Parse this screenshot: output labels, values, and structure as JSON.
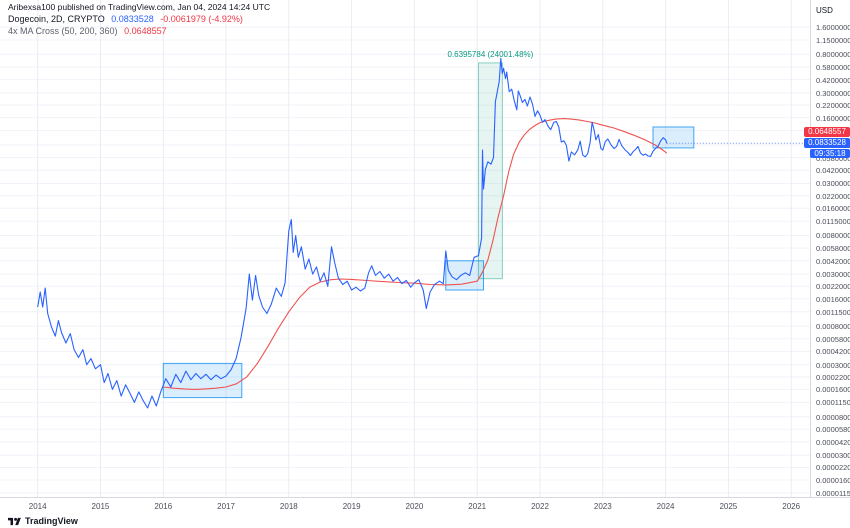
{
  "header": {
    "attribution": "Aribexsa100 published on TradingView.com, Jan 04, 2024 14:24 UTC",
    "symbol_line": {
      "title": "Dogecoin, 2D, CRYPTO",
      "price": "0.0833528",
      "change": "-0.0061979 (-4.92%)"
    },
    "indicator_line": {
      "title": "4x MA Cross (50, 200, 360)",
      "value": "0.0648557"
    }
  },
  "axis": {
    "unit_label": "USD",
    "y_ticks": [
      "1.6000000",
      "1.1500000",
      "0.8000000",
      "0.5800000",
      "0.4200000",
      "0.3000000",
      "0.2200000",
      "0.1600000",
      "0.1150000",
      "0.0800000",
      "0.0580000",
      "0.0420000",
      "0.0300000",
      "0.0220000",
      "0.0160000",
      "0.0115000",
      "0.0080000",
      "0.0058000",
      "0.0042000",
      "0.0030000",
      "0.0022000",
      "0.0016000",
      "0.0011500",
      "0.0008000",
      "0.0005800",
      "0.0004200",
      "0.0003000",
      "0.0002200",
      "0.0001600",
      "0.0001150",
      "0.0000800",
      "0.0000580",
      "0.0000420",
      "0.0000300",
      "0.0000220",
      "0.0000160",
      "0.0000115"
    ],
    "x_ticks": [
      "2014",
      "2015",
      "2016",
      "2017",
      "2018",
      "2019",
      "2020",
      "2021",
      "2022",
      "2023",
      "2024",
      "2025",
      "2026"
    ]
  },
  "badges": {
    "ma_value": "0.0648557",
    "price_value": "0.0833528",
    "countdown": "09:35:18"
  },
  "annotation": {
    "range_label": "0.6395784 (24001.48%)"
  },
  "footer": {
    "brand": "TradingView"
  },
  "colors": {
    "price_blue": "#2962ff",
    "change_red": "#f23645",
    "ma_red": "#ef5350",
    "band_green": "#089981"
  },
  "chart_data": {
    "type": "line",
    "title": "Dogecoin, 2D, CRYPTO",
    "ylabel": "USD",
    "yscale": "log",
    "grid": true,
    "x_unit": "decimal_year",
    "xlim": [
      2013.4,
      2026.3
    ],
    "ylim": [
      1.15e-05,
      1.6
    ],
    "series": [
      {
        "name": "4x MA Cross (50, 200, 360)",
        "color": "#ef5350",
        "points": [
          [
            2016.0,
            0.00017
          ],
          [
            2016.17,
            0.000165
          ],
          [
            2016.33,
            0.000162
          ],
          [
            2016.5,
            0.00016
          ],
          [
            2016.67,
            0.000162
          ],
          [
            2016.83,
            0.000165
          ],
          [
            2017.0,
            0.00017
          ],
          [
            2017.17,
            0.000185
          ],
          [
            2017.33,
            0.00022
          ],
          [
            2017.5,
            0.00031
          ],
          [
            2017.67,
            0.00048
          ],
          [
            2017.83,
            0.00075
          ],
          [
            2018.0,
            0.00115
          ],
          [
            2018.17,
            0.00165
          ],
          [
            2018.33,
            0.00215
          ],
          [
            2018.5,
            0.00245
          ],
          [
            2018.67,
            0.0026
          ],
          [
            2018.83,
            0.00265
          ],
          [
            2019.0,
            0.00262
          ],
          [
            2019.25,
            0.00255
          ],
          [
            2019.5,
            0.00248
          ],
          [
            2019.75,
            0.00242
          ],
          [
            2020.0,
            0.00238
          ],
          [
            2020.25,
            0.0023
          ],
          [
            2020.5,
            0.00228
          ],
          [
            2020.75,
            0.00232
          ],
          [
            2021.0,
            0.0025
          ],
          [
            2021.08,
            0.0031
          ],
          [
            2021.17,
            0.0043
          ],
          [
            2021.25,
            0.007
          ],
          [
            2021.33,
            0.0125
          ],
          [
            2021.42,
            0.022
          ],
          [
            2021.5,
            0.04
          ],
          [
            2021.58,
            0.063
          ],
          [
            2021.67,
            0.086
          ],
          [
            2021.75,
            0.103
          ],
          [
            2021.83,
            0.118
          ],
          [
            2021.92,
            0.131
          ],
          [
            2022.0,
            0.141
          ],
          [
            2022.13,
            0.149
          ],
          [
            2022.25,
            0.154
          ],
          [
            2022.38,
            0.156
          ],
          [
            2022.5,
            0.154
          ],
          [
            2022.63,
            0.15
          ],
          [
            2022.75,
            0.145
          ],
          [
            2022.88,
            0.139
          ],
          [
            2023.0,
            0.132
          ],
          [
            2023.17,
            0.123
          ],
          [
            2023.33,
            0.113
          ],
          [
            2023.5,
            0.102
          ],
          [
            2023.67,
            0.091
          ],
          [
            2023.83,
            0.08
          ],
          [
            2023.92,
            0.073
          ],
          [
            2024.02,
            0.0648557
          ]
        ]
      },
      {
        "name": "DOGE/USD",
        "color": "#2962ff",
        "points": [
          [
            2014.0,
            0.0013
          ],
          [
            2014.04,
            0.0019
          ],
          [
            2014.08,
            0.0013
          ],
          [
            2014.12,
            0.0021
          ],
          [
            2014.16,
            0.0011
          ],
          [
            2014.22,
            0.00078
          ],
          [
            2014.28,
            0.00062
          ],
          [
            2014.33,
            0.00092
          ],
          [
            2014.38,
            0.00068
          ],
          [
            2014.45,
            0.00052
          ],
          [
            2014.52,
            0.00066
          ],
          [
            2014.58,
            0.00044
          ],
          [
            2014.65,
            0.00036
          ],
          [
            2014.72,
            0.00044
          ],
          [
            2014.78,
            0.0003
          ],
          [
            2014.85,
            0.00035
          ],
          [
            2014.92,
            0.00027
          ],
          [
            2015.0,
            0.0003
          ],
          [
            2015.06,
            0.00019
          ],
          [
            2015.12,
            0.00024
          ],
          [
            2015.19,
            0.00016
          ],
          [
            2015.26,
            0.0002
          ],
          [
            2015.33,
            0.000135
          ],
          [
            2015.4,
            0.00018
          ],
          [
            2015.47,
            0.000145
          ],
          [
            2015.54,
            0.000115
          ],
          [
            2015.61,
            0.00015
          ],
          [
            2015.68,
            0.00012
          ],
          [
            2015.75,
            0.0001
          ],
          [
            2015.82,
            0.000135
          ],
          [
            2015.89,
            0.000105
          ],
          [
            2015.96,
            0.00015
          ],
          [
            2016.04,
            0.00021
          ],
          [
            2016.12,
            0.00017
          ],
          [
            2016.2,
            0.000235
          ],
          [
            2016.28,
            0.00019
          ],
          [
            2016.36,
            0.000255
          ],
          [
            2016.44,
            0.000205
          ],
          [
            2016.52,
            0.00024
          ],
          [
            2016.6,
            0.00021
          ],
          [
            2016.68,
            0.000235
          ],
          [
            2016.76,
            0.000205
          ],
          [
            2016.84,
            0.00023
          ],
          [
            2016.92,
            0.00021
          ],
          [
            2017.0,
            0.000225
          ],
          [
            2017.08,
            0.000265
          ],
          [
            2017.16,
            0.00035
          ],
          [
            2017.24,
            0.0006
          ],
          [
            2017.32,
            0.00125
          ],
          [
            2017.37,
            0.003
          ],
          [
            2017.42,
            0.00155
          ],
          [
            2017.47,
            0.0029
          ],
          [
            2017.52,
            0.00175
          ],
          [
            2017.58,
            0.0013
          ],
          [
            2017.65,
            0.0011
          ],
          [
            2017.72,
            0.0014
          ],
          [
            2017.8,
            0.0021
          ],
          [
            2017.88,
            0.0017
          ],
          [
            2017.94,
            0.0024
          ],
          [
            2018.0,
            0.009
          ],
          [
            2018.04,
            0.012
          ],
          [
            2018.07,
            0.0052
          ],
          [
            2018.11,
            0.008
          ],
          [
            2018.15,
            0.0046
          ],
          [
            2018.2,
            0.006
          ],
          [
            2018.26,
            0.0034
          ],
          [
            2018.32,
            0.0044
          ],
          [
            2018.38,
            0.003
          ],
          [
            2018.44,
            0.0036
          ],
          [
            2018.5,
            0.0025
          ],
          [
            2018.56,
            0.0031
          ],
          [
            2018.62,
            0.0022
          ],
          [
            2018.68,
            0.006
          ],
          [
            2018.73,
            0.004
          ],
          [
            2018.79,
            0.0027
          ],
          [
            2018.86,
            0.0023
          ],
          [
            2018.93,
            0.0025
          ],
          [
            2019.0,
            0.002
          ],
          [
            2019.07,
            0.00215
          ],
          [
            2019.14,
            0.00195
          ],
          [
            2019.21,
            0.0021
          ],
          [
            2019.27,
            0.0031
          ],
          [
            2019.32,
            0.0037
          ],
          [
            2019.38,
            0.0029
          ],
          [
            2019.45,
            0.0032
          ],
          [
            2019.52,
            0.0027
          ],
          [
            2019.59,
            0.003
          ],
          [
            2019.66,
            0.0025
          ],
          [
            2019.73,
            0.00275
          ],
          [
            2019.8,
            0.00235
          ],
          [
            2019.87,
            0.00255
          ],
          [
            2019.94,
            0.00215
          ],
          [
            2020.0,
            0.0024
          ],
          [
            2020.07,
            0.0026
          ],
          [
            2020.14,
            0.002
          ],
          [
            2020.19,
            0.00125
          ],
          [
            2020.25,
            0.0019
          ],
          [
            2020.32,
            0.0023
          ],
          [
            2020.4,
            0.0025
          ],
          [
            2020.46,
            0.00235
          ],
          [
            2020.5,
            0.0054
          ],
          [
            2020.54,
            0.0033
          ],
          [
            2020.6,
            0.0028
          ],
          [
            2020.67,
            0.0026
          ],
          [
            2020.74,
            0.0029
          ],
          [
            2020.81,
            0.0031
          ],
          [
            2020.88,
            0.0029
          ],
          [
            2020.95,
            0.0046
          ],
          [
            2021.02,
            0.0048
          ],
          [
            2021.07,
            0.0075
          ],
          [
            2021.085,
            0.07
          ],
          [
            2021.1,
            0.026
          ],
          [
            2021.13,
            0.043
          ],
          [
            2021.17,
            0.052
          ],
          [
            2021.22,
            0.049
          ],
          [
            2021.26,
            0.058
          ],
          [
            2021.29,
            0.24
          ],
          [
            2021.32,
            0.31
          ],
          [
            2021.35,
            0.4
          ],
          [
            2021.375,
            0.72
          ],
          [
            2021.4,
            0.49
          ],
          [
            2021.42,
            0.56
          ],
          [
            2021.45,
            0.43
          ],
          [
            2021.47,
            0.51
          ],
          [
            2021.51,
            0.31
          ],
          [
            2021.55,
            0.33
          ],
          [
            2021.59,
            0.245
          ],
          [
            2021.63,
            0.195
          ],
          [
            2021.655,
            0.315
          ],
          [
            2021.68,
            0.285
          ],
          [
            2021.72,
            0.235
          ],
          [
            2021.76,
            0.255
          ],
          [
            2021.8,
            0.215
          ],
          [
            2021.84,
            0.27
          ],
          [
            2021.88,
            0.225
          ],
          [
            2021.92,
            0.165
          ],
          [
            2021.96,
            0.19
          ],
          [
            2022.0,
            0.17
          ],
          [
            2022.04,
            0.142
          ],
          [
            2022.08,
            0.152
          ],
          [
            2022.13,
            0.128
          ],
          [
            2022.17,
            0.118
          ],
          [
            2022.22,
            0.142
          ],
          [
            2022.26,
            0.145
          ],
          [
            2022.3,
            0.126
          ],
          [
            2022.34,
            0.086
          ],
          [
            2022.38,
            0.089
          ],
          [
            2022.42,
            0.079
          ],
          [
            2022.46,
            0.053
          ],
          [
            2022.5,
            0.067
          ],
          [
            2022.55,
            0.062
          ],
          [
            2022.6,
            0.07
          ],
          [
            2022.64,
            0.088
          ],
          [
            2022.68,
            0.062
          ],
          [
            2022.72,
            0.059
          ],
          [
            2022.76,
            0.064
          ],
          [
            2022.8,
            0.086
          ],
          [
            2022.83,
            0.142
          ],
          [
            2022.86,
            0.118
          ],
          [
            2022.89,
            0.091
          ],
          [
            2022.93,
            0.104
          ],
          [
            2022.97,
            0.073
          ],
          [
            2023.0,
            0.07
          ],
          [
            2023.04,
            0.087
          ],
          [
            2023.08,
            0.093
          ],
          [
            2023.13,
            0.08
          ],
          [
            2023.18,
            0.073
          ],
          [
            2023.22,
            0.077
          ],
          [
            2023.26,
            0.092
          ],
          [
            2023.3,
            0.079
          ],
          [
            2023.35,
            0.071
          ],
          [
            2023.4,
            0.066
          ],
          [
            2023.44,
            0.061
          ],
          [
            2023.48,
            0.067
          ],
          [
            2023.52,
            0.071
          ],
          [
            2023.56,
            0.077
          ],
          [
            2023.6,
            0.065
          ],
          [
            2023.64,
            0.0615
          ],
          [
            2023.68,
            0.0635
          ],
          [
            2023.72,
            0.0605
          ],
          [
            2023.76,
            0.0595
          ],
          [
            2023.8,
            0.068
          ],
          [
            2023.84,
            0.073
          ],
          [
            2023.88,
            0.077
          ],
          [
            2023.92,
            0.088
          ],
          [
            2023.96,
            0.096
          ],
          [
            2024.0,
            0.091
          ],
          [
            2024.02,
            0.0833528
          ]
        ]
      }
    ],
    "regions": [
      {
        "type": "rect",
        "name": "box-2016",
        "x1": 2016.0,
        "x2": 2017.25,
        "p1": 0.00013,
        "p2": 0.00031,
        "fill": "rgba(33,150,243,0.16)",
        "stroke": "rgba(33,150,243,0.85)"
      },
      {
        "type": "rect",
        "name": "box-2020",
        "x1": 2020.5,
        "x2": 2021.1,
        "p1": 0.002,
        "p2": 0.0042,
        "fill": "rgba(33,150,243,0.16)",
        "stroke": "rgba(33,150,243,0.85)"
      },
      {
        "type": "rect",
        "name": "box-2024",
        "x1": 2023.8,
        "x2": 2024.45,
        "p1": 0.074,
        "p2": 0.126,
        "fill": "rgba(33,150,243,0.16)",
        "stroke": "rgba(33,150,243,0.85)"
      },
      {
        "type": "band",
        "name": "measure-band-2021",
        "x1": 2021.02,
        "x2": 2021.4,
        "p1": 0.002665,
        "p2": 0.642244,
        "fill": "rgba(8,153,129,0.10)",
        "stroke": "rgba(8,153,129,0.45)",
        "label": "0.6395784 (24001.48%)"
      }
    ]
  }
}
